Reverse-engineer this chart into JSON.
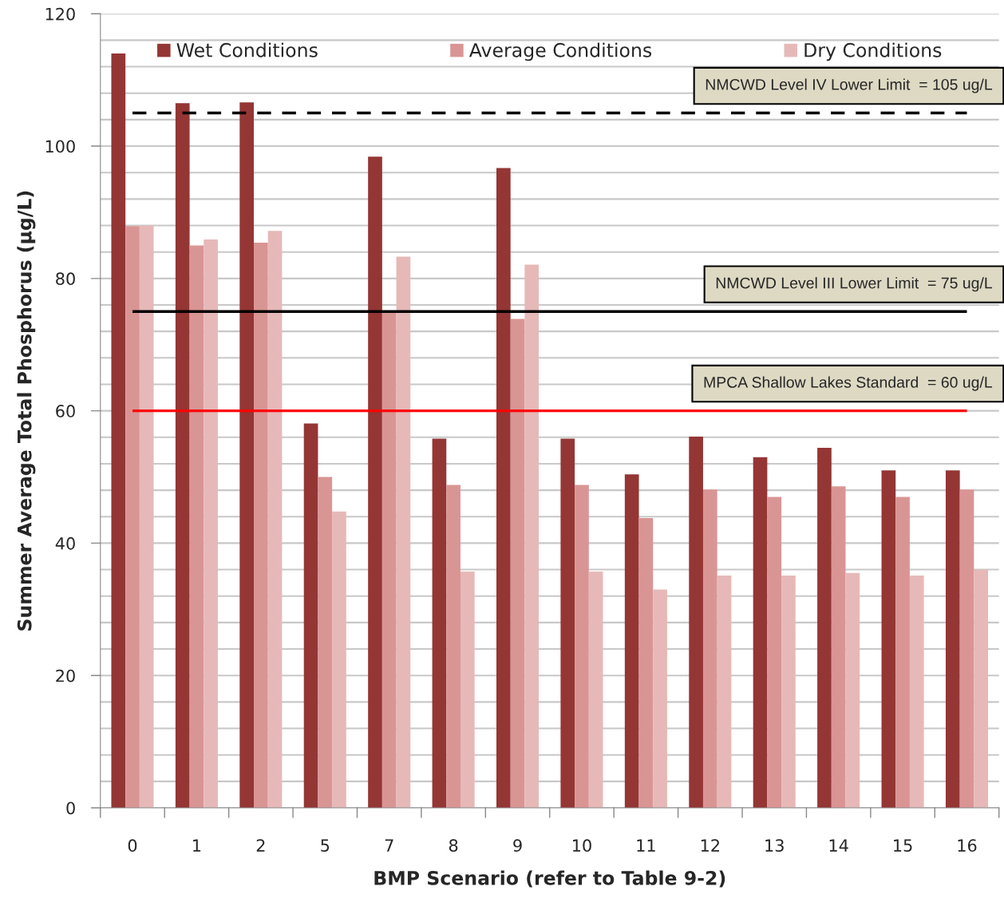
{
  "chart_data": {
    "type": "bar",
    "xlabel": "BMP Scenario (refer to Table 9-2)",
    "ylabel": "Summer Average Total Phosphorus (µg/L)",
    "categories": [
      "0",
      "1",
      "2",
      "5",
      "7",
      "8",
      "9",
      "10",
      "11",
      "12",
      "13",
      "14",
      "15",
      "16"
    ],
    "series": [
      {
        "name": "Wet Conditions",
        "color": "#943634",
        "values": [
          114.0,
          106.5,
          106.6,
          58.1,
          98.4,
          55.8,
          96.7,
          55.8,
          50.4,
          56.1,
          53.0,
          54.4,
          51.0,
          51.0
        ]
      },
      {
        "name": "Average Conditions",
        "color": "#d99594",
        "values": [
          87.9,
          85.0,
          85.4,
          50.0,
          75.0,
          48.8,
          73.9,
          48.8,
          43.8,
          48.1,
          47.0,
          48.6,
          47.0,
          48.1
        ]
      },
      {
        "name": "Dry Conditions",
        "color": "#e6b9b8",
        "values": [
          88.0,
          85.9,
          87.2,
          44.8,
          83.3,
          35.7,
          82.1,
          35.7,
          33.0,
          35.1,
          35.1,
          35.5,
          35.1,
          36.0
        ]
      }
    ],
    "ylim": [
      0,
      120
    ],
    "yticks": [
      0,
      {
        "value": 4,
        "label": null
      },
      {
        "value": 8,
        "label": null
      },
      {
        "value": 12,
        "label": null
      },
      {
        "value": 16,
        "label": null
      },
      20,
      {
        "value": 24,
        "label": null
      },
      {
        "value": 28,
        "label": null
      },
      {
        "value": 32,
        "label": null
      },
      {
        "value": 36,
        "label": null
      },
      40,
      {
        "value": 44,
        "label": null
      },
      {
        "value": 48,
        "label": null
      },
      {
        "value": 52,
        "label": null
      },
      {
        "value": 56,
        "label": null
      },
      60,
      {
        "value": 64,
        "label": null
      },
      {
        "value": 68,
        "label": null
      },
      {
        "value": 72,
        "label": null
      },
      {
        "value": 76,
        "label": null
      },
      80,
      {
        "value": 84,
        "label": null
      },
      {
        "value": 88,
        "label": null
      },
      {
        "value": 92,
        "label": null
      },
      {
        "value": 96,
        "label": null
      },
      100,
      {
        "value": 104,
        "label": null
      },
      {
        "value": 108,
        "label": null
      },
      {
        "value": 112,
        "label": null
      },
      {
        "value": 116,
        "label": null
      },
      120
    ],
    "ref_lines": [
      {
        "axis": "y",
        "value": 105,
        "label": "NMCWD Level IV Lower Limit  = 105 ug/L",
        "color": "#000000",
        "line_style": "dashed"
      },
      {
        "axis": "y",
        "value": 75,
        "label": "NMCWD Level III Lower Limit  = 75 ug/L",
        "color": "#000000",
        "line_style": "solid"
      },
      {
        "axis": "y",
        "value": 60,
        "label": "MPCA Shallow Lakes Standard  = 60 ug/L",
        "color": "#ff0000",
        "line_style": "solid"
      }
    ],
    "grid": "y",
    "legend": "top"
  }
}
